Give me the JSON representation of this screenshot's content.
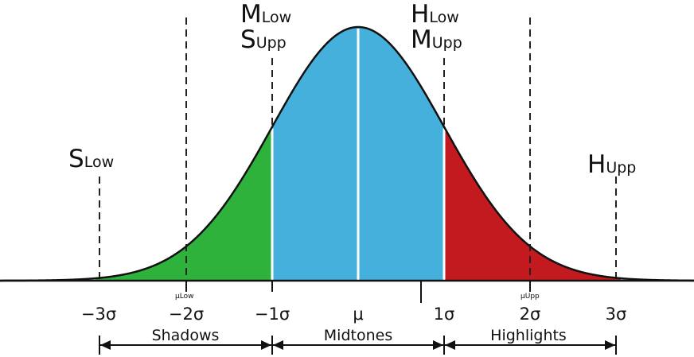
{
  "labels": {
    "m_low": {
      "main": "M",
      "sub": "Low"
    },
    "s_upp": {
      "main": "S",
      "sub": "Upp"
    },
    "h_low": {
      "main": "H",
      "sub": "Low"
    },
    "m_upp": {
      "main": "M",
      "sub": "Upp"
    },
    "s_low": {
      "main": "S",
      "sub": "Low"
    },
    "h_upp": {
      "main": "H",
      "sub": "Upp"
    }
  },
  "ticks": [
    "−3σ",
    "−2σ",
    "−1σ",
    "μ",
    "1σ",
    "2σ",
    "3σ"
  ],
  "mu_low": "μLow",
  "mu_upp": "μUpp",
  "regions": {
    "shadows": "Shadows",
    "midtones": "Midtones",
    "highlights": "Highlights"
  },
  "colors": {
    "shadows": "#2eb23c",
    "midtones": "#46b0dc",
    "highlights": "#c21a1e",
    "curve": "#111111"
  }
}
